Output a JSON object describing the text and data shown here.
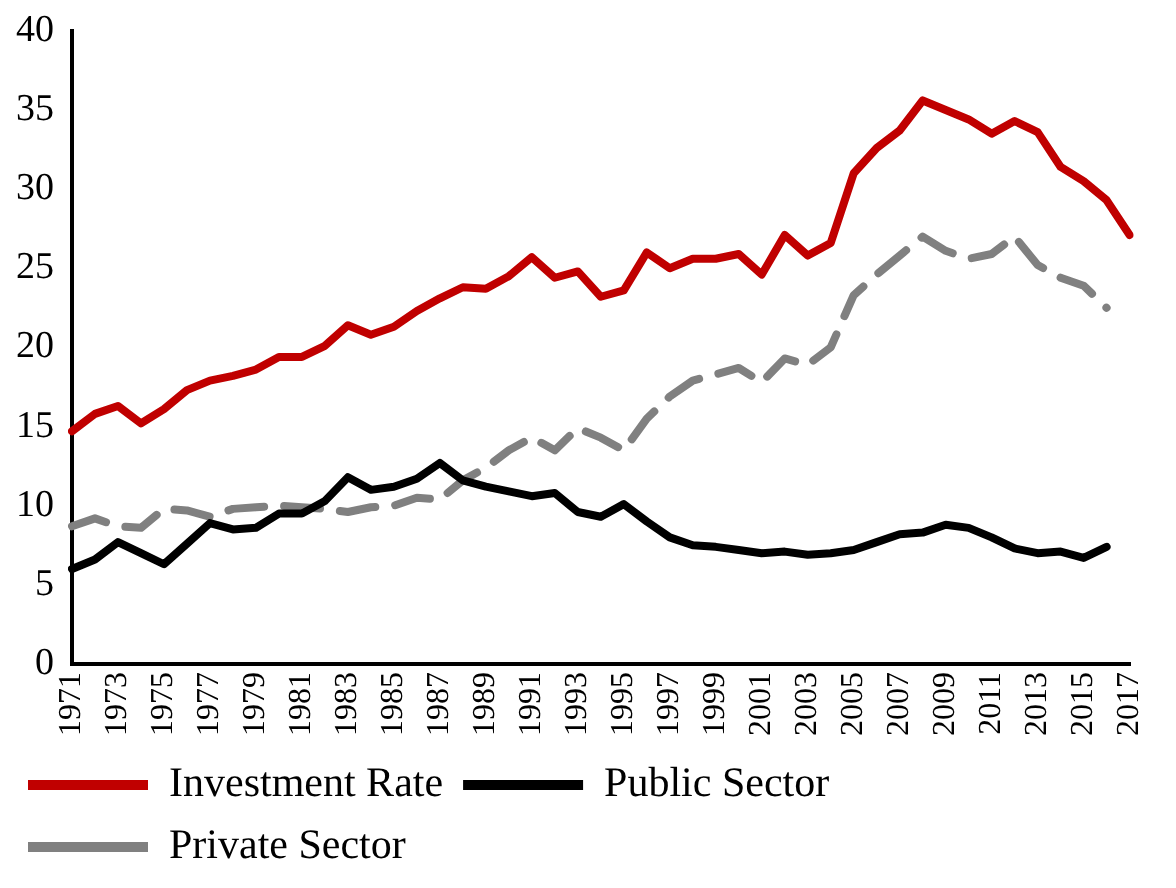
{
  "chart_data": {
    "type": "line",
    "categories": [
      "1971",
      null,
      "1973",
      null,
      "1975",
      null,
      "1977",
      null,
      "1979",
      null,
      "1981",
      null,
      "1983",
      null,
      "1985",
      null,
      "1987",
      null,
      "1989",
      null,
      "1991",
      null,
      "1993",
      null,
      "1995",
      null,
      "1997",
      null,
      "1999",
      null,
      "2001",
      null,
      "2003",
      null,
      "2005",
      null,
      "2007",
      null,
      "2009",
      null,
      "2011",
      null,
      "2013",
      null,
      "2015",
      null,
      "2017"
    ],
    "series": [
      {
        "name": "Investment Rate",
        "color": "#c00000",
        "line_style": "solid",
        "values": [
          14.7,
          15.8,
          16.3,
          15.2,
          16.1,
          17.3,
          17.9,
          18.2,
          18.6,
          19.4,
          19.4,
          20.1,
          21.4,
          20.8,
          21.3,
          22.3,
          23.1,
          23.8,
          23.7,
          24.5,
          25.7,
          24.4,
          24.8,
          23.2,
          23.6,
          26.0,
          25.0,
          25.6,
          25.6,
          25.9,
          24.6,
          27.1,
          25.8,
          26.6,
          31.0,
          32.6,
          33.7,
          35.6,
          35.0,
          34.4,
          33.5,
          34.3,
          33.6,
          31.4,
          30.5,
          29.3,
          27.1
        ]
      },
      {
        "name": "Public Sector",
        "color": "#000000",
        "line_style": "solid",
        "values": [
          6.0,
          6.6,
          7.7,
          7.0,
          6.3,
          7.6,
          8.9,
          8.5,
          8.6,
          9.5,
          9.5,
          10.3,
          11.8,
          11.0,
          11.2,
          11.7,
          12.7,
          11.6,
          11.2,
          10.9,
          10.6,
          10.8,
          9.6,
          9.3,
          10.1,
          9.0,
          8.0,
          7.5,
          7.4,
          7.2,
          7.0,
          7.1,
          6.9,
          7.0,
          7.2,
          7.7,
          8.2,
          8.3,
          8.8,
          8.6,
          8.0,
          7.3,
          7.0,
          7.1,
          6.7,
          7.4,
          null
        ]
      },
      {
        "name": "Private Sector",
        "color": "#808080",
        "line_style": "dashed",
        "values": [
          8.7,
          9.2,
          8.7,
          8.6,
          9.8,
          9.7,
          9.3,
          9.8,
          9.9,
          10.0,
          9.9,
          9.8,
          9.6,
          9.9,
          10.0,
          10.5,
          10.4,
          11.6,
          12.4,
          13.5,
          14.3,
          13.5,
          14.9,
          14.3,
          13.5,
          15.5,
          16.9,
          17.9,
          18.3,
          18.7,
          17.8,
          19.3,
          18.9,
          20.0,
          23.3,
          24.6,
          25.8,
          27.0,
          26.1,
          25.6,
          25.9,
          27.0,
          25.2,
          24.4,
          23.9,
          22.5,
          null
        ]
      }
    ],
    "ylim": [
      0,
      40
    ],
    "yticks": [
      0,
      5,
      10,
      15,
      20,
      25,
      30,
      35,
      40
    ],
    "grid": false,
    "legend": "bottom",
    "marker": "none"
  }
}
